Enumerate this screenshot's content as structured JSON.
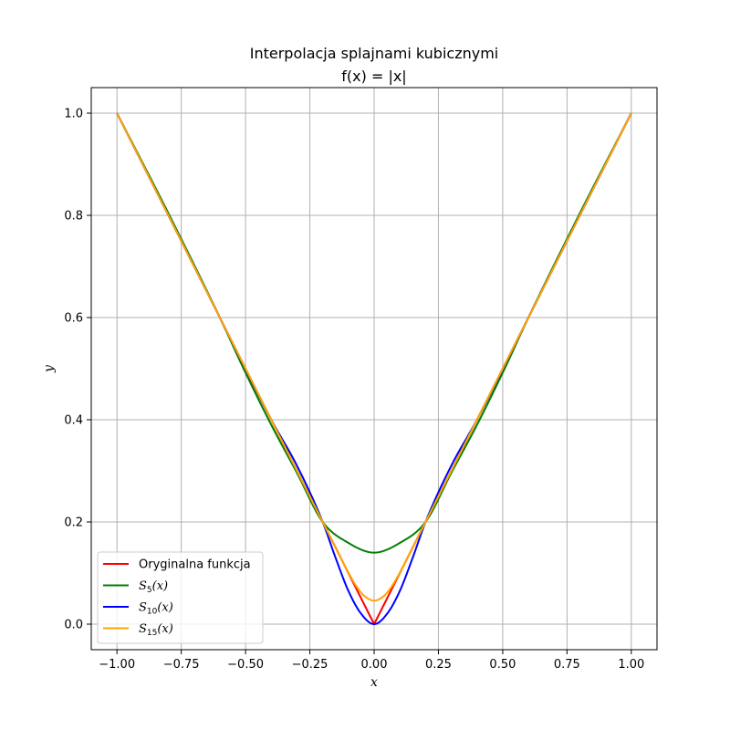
{
  "chart_data": {
    "type": "line",
    "title": "Interpolacja splajnami kubicznymi",
    "subtitle": "f(x) = |x|",
    "xlabel": "x",
    "ylabel": "y",
    "xlim": [
      -1.1,
      1.1
    ],
    "ylim": [
      -0.05,
      1.05
    ],
    "xticks": [
      -1.0,
      -0.75,
      -0.5,
      -0.25,
      0.0,
      0.25,
      0.5,
      0.75,
      1.0
    ],
    "xtick_labels": [
      "−1.00",
      "−0.75",
      "−0.50",
      "−0.25",
      "0.00",
      "0.25",
      "0.50",
      "0.75",
      "1.00"
    ],
    "yticks": [
      0.0,
      0.2,
      0.4,
      0.6,
      0.8,
      1.0
    ],
    "ytick_labels": [
      "0.0",
      "0.2",
      "0.4",
      "0.6",
      "0.8",
      "1.0"
    ],
    "grid": true,
    "legend_position": "lower-left",
    "series": [
      {
        "name": "Oryginalna funkcja",
        "label_base": "Oryginalna funkcja",
        "color": "#ff0000",
        "x": [
          -1.0,
          -0.8,
          -0.6,
          -0.4,
          -0.2,
          0.0,
          0.2,
          0.4,
          0.6,
          0.8,
          1.0
        ],
        "y": [
          1.0,
          0.8,
          0.6,
          0.4,
          0.2,
          0.0,
          0.2,
          0.4,
          0.6,
          0.8,
          1.0
        ]
      },
      {
        "name": "S5(x)",
        "label_base": "S",
        "label_sub": "5",
        "label_arg": "(x)",
        "color": "#008000",
        "x": [
          -1.0,
          -0.8,
          -0.6,
          -0.5,
          -0.4,
          -0.3,
          -0.2,
          -0.1,
          0.0,
          0.1,
          0.2,
          0.3,
          0.4,
          0.5,
          0.6,
          0.8,
          1.0
        ],
        "y": [
          1.0,
          0.804,
          0.6,
          0.492,
          0.39,
          0.296,
          0.2,
          0.159,
          0.14,
          0.159,
          0.2,
          0.296,
          0.39,
          0.492,
          0.6,
          0.804,
          1.0
        ]
      },
      {
        "name": "S10(x)",
        "label_base": "S",
        "label_sub": "10",
        "label_arg": "(x)",
        "color": "#0000ff",
        "x": [
          -1.0,
          -0.8,
          -0.6,
          -0.4,
          -0.3,
          -0.2,
          -0.15,
          -0.1,
          -0.05,
          0.0,
          0.05,
          0.1,
          0.15,
          0.2,
          0.3,
          0.4,
          0.6,
          0.8,
          1.0
        ],
        "y": [
          1.0,
          0.8,
          0.6,
          0.4,
          0.31,
          0.2,
          0.13,
          0.065,
          0.02,
          0.0,
          0.02,
          0.065,
          0.13,
          0.2,
          0.31,
          0.4,
          0.6,
          0.8,
          1.0
        ]
      },
      {
        "name": "S15(x)",
        "label_base": "S",
        "label_sub": "15",
        "label_arg": "(x)",
        "color": "#ffa500",
        "x": [
          -1.0,
          -0.6,
          -0.2,
          -0.12,
          -0.07,
          -0.04,
          0.0,
          0.04,
          0.07,
          0.12,
          0.2,
          0.6,
          1.0
        ],
        "y": [
          1.0,
          0.6,
          0.2,
          0.12,
          0.075,
          0.056,
          0.046,
          0.056,
          0.075,
          0.12,
          0.2,
          0.6,
          1.0
        ]
      }
    ]
  }
}
